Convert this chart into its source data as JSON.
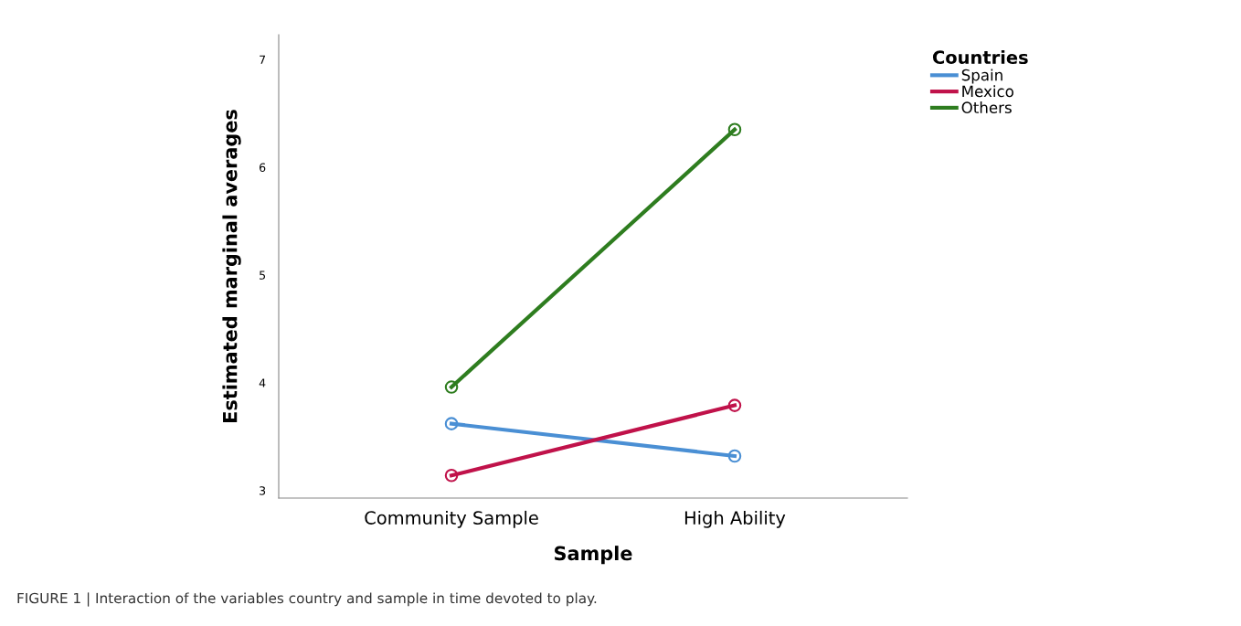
{
  "chart_data": {
    "type": "line",
    "xlabel": "Sample",
    "ylabel": "Estimated marginal averages",
    "categories": [
      "Community Sample",
      "High Ability"
    ],
    "series": [
      {
        "name": "Spain",
        "color": "#4a8fd4",
        "values": [
          3.62,
          3.32
        ]
      },
      {
        "name": "Mexico",
        "color": "#c0124a",
        "values": [
          3.14,
          3.79
        ]
      },
      {
        "name": "Others",
        "color": "#2e7d1f",
        "values": [
          3.96,
          6.35
        ]
      }
    ],
    "ylim": [
      2.93,
      7.23
    ],
    "yticks": [
      3,
      4,
      5,
      6,
      7
    ],
    "legend_title": "Countries",
    "legend": "top right",
    "marker": "circle",
    "grid": false,
    "annotations": [
      "FIGURE 1 | Interaction of the variables country and sample in time devoted to play."
    ]
  }
}
